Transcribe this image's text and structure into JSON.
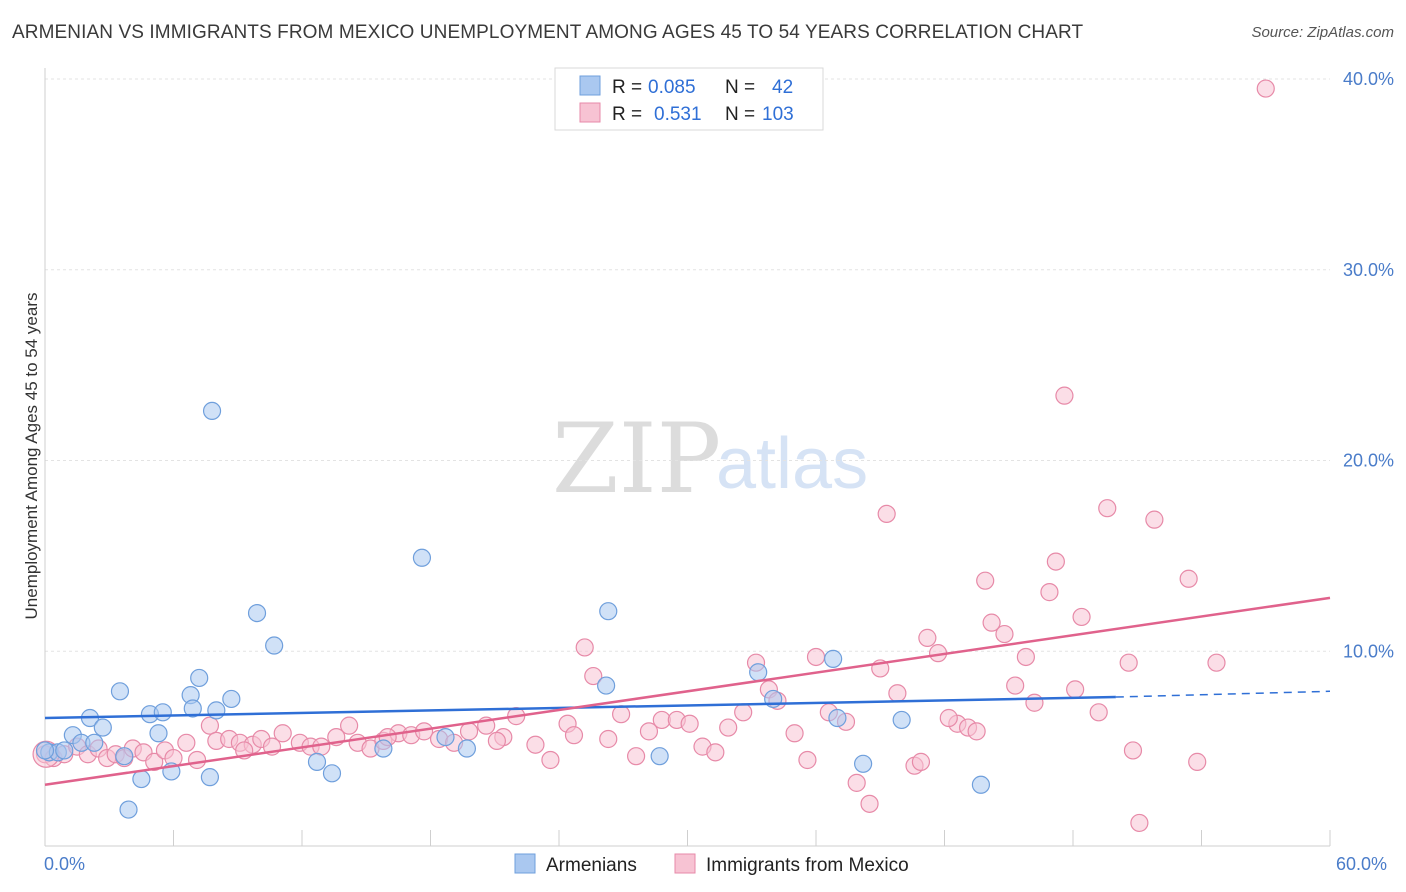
{
  "title": "ARMENIAN VS IMMIGRANTS FROM MEXICO UNEMPLOYMENT AMONG AGES 45 TO 54 YEARS CORRELATION CHART",
  "source": "Source: ZipAtlas.com",
  "watermark": {
    "zip": "ZIP",
    "atlas": "atlas"
  },
  "legend": {
    "r_label": "R =",
    "n_label": "N =",
    "rows": [
      {
        "r": "0.085",
        "n": "42",
        "color": "#aac8f0",
        "stroke": "#6f9fdc"
      },
      {
        "r": "0.531",
        "n": "103",
        "color": "#f7c3d3",
        "stroke": "#e78aa8"
      }
    ]
  },
  "bottom_legend": [
    {
      "label": "Armenians",
      "color": "#aac8f0",
      "stroke": "#6f9fdc"
    },
    {
      "label": "Immigrants from Mexico",
      "color": "#f7c3d3",
      "stroke": "#e78aa8"
    }
  ],
  "chart_data": {
    "type": "scatter",
    "title": "ARMENIAN VS IMMIGRANTS FROM MEXICO UNEMPLOYMENT AMONG AGES 45 TO 54 YEARS CORRELATION CHART",
    "xlabel": "",
    "ylabel": "Unemployment Among Ages 45 to 54 years",
    "xlim": [
      0,
      60
    ],
    "ylim": [
      0,
      40
    ],
    "x_tick_labels": [
      "0.0%",
      "60.0%"
    ],
    "y_ticks": [
      10,
      20,
      30,
      40
    ],
    "y_tick_labels": [
      "10.0%",
      "20.0%",
      "30.0%",
      "40.0%"
    ],
    "grid": true,
    "series": [
      {
        "name": "Armenians",
        "color": "#6f9fdc",
        "trend": {
          "x0": 0,
          "y0": 6.5,
          "x1": 50,
          "y1": 7.6,
          "dash_to_x": 60,
          "dash_to_y": 7.9
        },
        "points": [
          [
            0.2,
            4.7
          ],
          [
            0.6,
            4.7
          ],
          [
            0.9,
            4.8
          ],
          [
            1.3,
            5.6
          ],
          [
            1.7,
            5.2
          ],
          [
            2.1,
            6.5
          ],
          [
            2.3,
            5.2
          ],
          [
            2.7,
            6.0
          ],
          [
            3.5,
            7.9
          ],
          [
            3.7,
            4.5
          ],
          [
            4.5,
            3.3
          ],
          [
            3.9,
            1.7
          ],
          [
            4.9,
            6.7
          ],
          [
            5.3,
            5.7
          ],
          [
            5.5,
            6.8
          ],
          [
            5.9,
            3.7
          ],
          [
            6.8,
            7.7
          ],
          [
            6.9,
            7.0
          ],
          [
            7.2,
            8.6
          ],
          [
            7.7,
            3.4
          ],
          [
            8.0,
            6.9
          ],
          [
            8.7,
            7.5
          ],
          [
            9.9,
            12.0
          ],
          [
            10.7,
            10.3
          ],
          [
            7.8,
            22.6
          ],
          [
            12.7,
            4.2
          ],
          [
            13.4,
            3.6
          ],
          [
            15.8,
            4.9
          ],
          [
            17.6,
            14.9
          ],
          [
            18.7,
            5.5
          ],
          [
            19.7,
            4.9
          ],
          [
            26.3,
            12.1
          ],
          [
            26.2,
            8.2
          ],
          [
            28.7,
            4.5
          ],
          [
            33.3,
            8.9
          ],
          [
            34.0,
            7.5
          ],
          [
            36.8,
            9.6
          ],
          [
            37.0,
            6.5
          ],
          [
            38.2,
            4.1
          ],
          [
            40.0,
            6.4
          ],
          [
            43.7,
            3.0
          ],
          [
            0.0,
            4.8
          ]
        ]
      },
      {
        "name": "Immigrants from Mexico",
        "color": "#e78aa8",
        "trend": {
          "x0": 0,
          "y0": 3.0,
          "x1": 60,
          "y1": 12.8
        },
        "points": [
          [
            0.0,
            4.6
          ],
          [
            0.4,
            4.4
          ],
          [
            0.9,
            4.6
          ],
          [
            1.5,
            5.0
          ],
          [
            2.0,
            4.6
          ],
          [
            2.5,
            4.9
          ],
          [
            2.9,
            4.4
          ],
          [
            3.3,
            4.6
          ],
          [
            3.7,
            4.4
          ],
          [
            4.1,
            4.9
          ],
          [
            4.6,
            4.7
          ],
          [
            5.1,
            4.2
          ],
          [
            5.6,
            4.8
          ],
          [
            6.0,
            4.4
          ],
          [
            6.6,
            5.2
          ],
          [
            7.1,
            4.3
          ],
          [
            7.7,
            6.1
          ],
          [
            8.0,
            5.3
          ],
          [
            8.6,
            5.4
          ],
          [
            9.1,
            5.2
          ],
          [
            9.7,
            5.1
          ],
          [
            10.1,
            5.4
          ],
          [
            10.6,
            5.0
          ],
          [
            11.1,
            5.7
          ],
          [
            11.9,
            5.2
          ],
          [
            12.4,
            5.0
          ],
          [
            12.9,
            5.0
          ],
          [
            13.6,
            5.5
          ],
          [
            14.2,
            6.1
          ],
          [
            14.6,
            5.2
          ],
          [
            15.2,
            4.9
          ],
          [
            15.8,
            5.3
          ],
          [
            16.5,
            5.7
          ],
          [
            17.1,
            5.6
          ],
          [
            17.7,
            5.8
          ],
          [
            18.4,
            5.4
          ],
          [
            19.1,
            5.2
          ],
          [
            19.8,
            5.8
          ],
          [
            20.6,
            6.1
          ],
          [
            21.4,
            5.5
          ],
          [
            22.0,
            6.6
          ],
          [
            22.9,
            5.1
          ],
          [
            23.6,
            4.3
          ],
          [
            24.4,
            6.2
          ],
          [
            25.2,
            10.2
          ],
          [
            25.6,
            8.7
          ],
          [
            26.3,
            5.4
          ],
          [
            26.9,
            6.7
          ],
          [
            27.6,
            4.5
          ],
          [
            28.2,
            5.8
          ],
          [
            28.8,
            6.4
          ],
          [
            29.5,
            6.4
          ],
          [
            30.1,
            6.2
          ],
          [
            30.7,
            5.0
          ],
          [
            31.3,
            4.7
          ],
          [
            31.9,
            6.0
          ],
          [
            32.6,
            6.8
          ],
          [
            33.2,
            9.4
          ],
          [
            33.8,
            8.0
          ],
          [
            34.2,
            7.4
          ],
          [
            35.0,
            5.7
          ],
          [
            35.6,
            4.3
          ],
          [
            36.0,
            9.7
          ],
          [
            36.6,
            6.8
          ],
          [
            37.4,
            6.3
          ],
          [
            37.9,
            3.1
          ],
          [
            38.5,
            2.0
          ],
          [
            39.0,
            9.1
          ],
          [
            39.3,
            17.2
          ],
          [
            39.8,
            7.8
          ],
          [
            40.6,
            4.0
          ],
          [
            41.2,
            10.7
          ],
          [
            41.7,
            9.9
          ],
          [
            42.6,
            6.2
          ],
          [
            43.1,
            6.0
          ],
          [
            43.5,
            5.8
          ],
          [
            43.9,
            13.7
          ],
          [
            44.2,
            11.5
          ],
          [
            44.8,
            10.9
          ],
          [
            45.3,
            8.2
          ],
          [
            45.8,
            9.7
          ],
          [
            46.2,
            7.3
          ],
          [
            46.9,
            13.1
          ],
          [
            47.2,
            14.7
          ],
          [
            47.6,
            23.4
          ],
          [
            48.1,
            8.0
          ],
          [
            48.4,
            11.8
          ],
          [
            49.2,
            6.8
          ],
          [
            49.6,
            17.5
          ],
          [
            50.6,
            9.4
          ],
          [
            50.8,
            4.8
          ],
          [
            51.1,
            1.0
          ],
          [
            51.8,
            16.9
          ],
          [
            53.4,
            13.8
          ],
          [
            53.8,
            4.2
          ],
          [
            54.7,
            9.4
          ],
          [
            57.0,
            39.5
          ],
          [
            42.2,
            6.5
          ],
          [
            40.9,
            4.2
          ],
          [
            21.1,
            5.3
          ],
          [
            9.3,
            4.8
          ],
          [
            16.0,
            5.5
          ],
          [
            24.7,
            5.6
          ]
        ]
      }
    ]
  }
}
